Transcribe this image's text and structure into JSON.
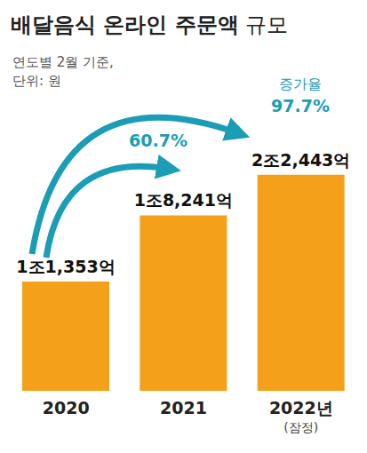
{
  "chart_data": {
    "type": "bar",
    "title": "배달음식 온라인 주문액 규모",
    "subtitle": [
      "연도별 2월 기준,",
      "단위: 원"
    ],
    "categories": [
      "2020",
      "2021",
      "2022년\n(잠정)"
    ],
    "values": [
      1135300000000,
      1824100000000,
      2244300000000
    ],
    "value_labels": [
      "1조1,353억",
      "1조8,241억",
      "2조2,443억"
    ],
    "data_labels": true,
    "color": "#f5a01a",
    "ylim": [
      0,
      3000000000000
    ],
    "tick_labels": "x",
    "grid": false,
    "annotations": [
      {
        "text": "60.7%"
      },
      {
        "text": "증가율\n97.7%"
      }
    ]
  }
}
